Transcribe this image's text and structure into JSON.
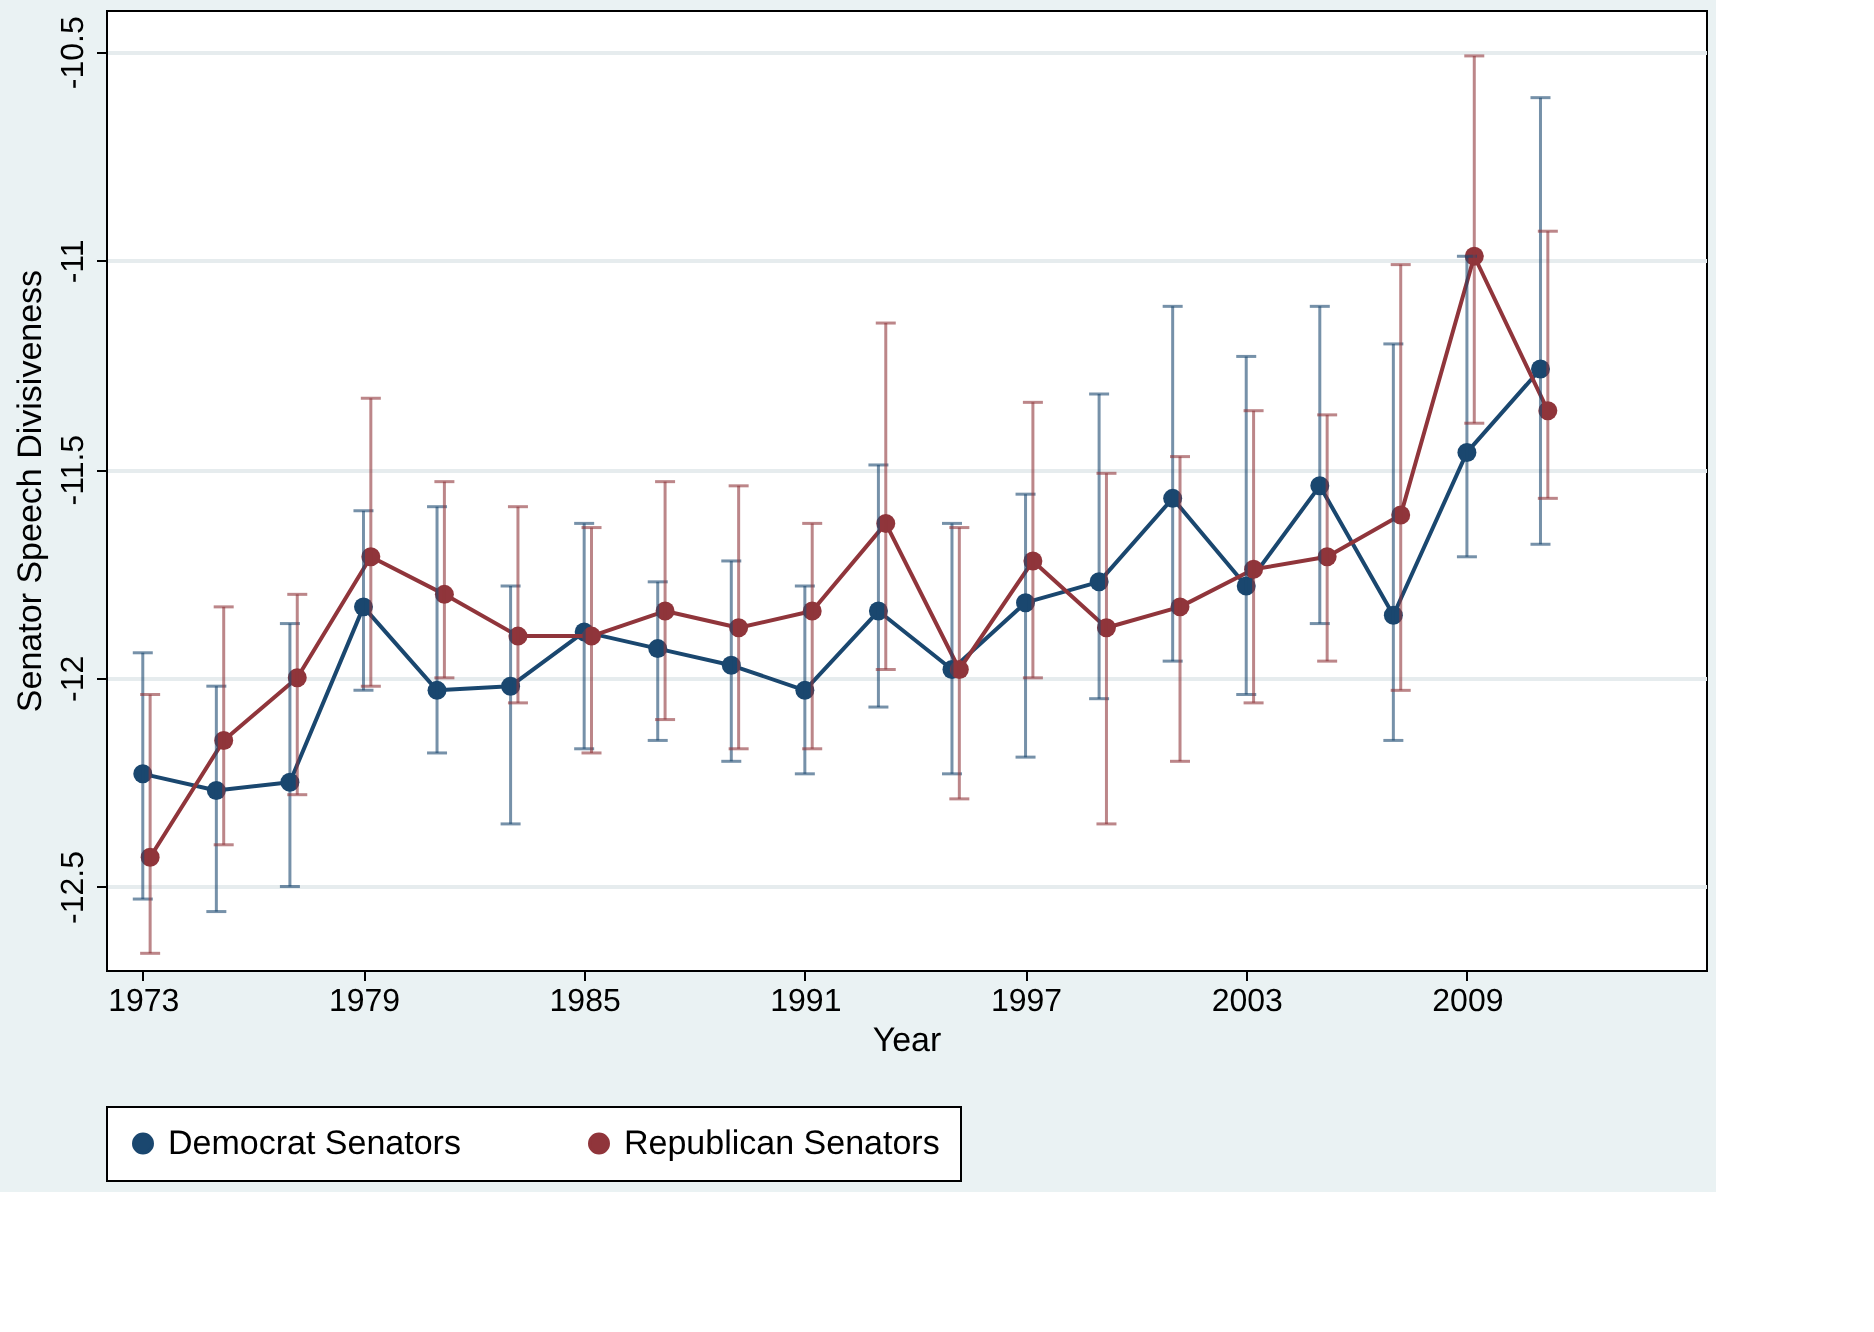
{
  "chart_data": {
    "type": "line",
    "xlabel": "Year",
    "ylabel": "Senator Speech Divisiveness",
    "x": [
      1973,
      1975,
      1977,
      1979,
      1981,
      1983,
      1985,
      1987,
      1989,
      1991,
      1993,
      1995,
      1997,
      1999,
      2001,
      2003,
      2005,
      2007,
      2009,
      2011
    ],
    "xlim": [
      1972,
      2015.5
    ],
    "xticks": [
      1973,
      1979,
      1985,
      1991,
      1997,
      2003,
      2009
    ],
    "ylim": [
      -12.7,
      -10.4
    ],
    "yticks": [
      -12.5,
      -12,
      -11.5,
      -11,
      -10.5
    ],
    "grid": "y",
    "legend": "bottom",
    "marker": "circle",
    "line_style": "solid",
    "series": [
      {
        "name": "Democrat Senators",
        "color": "#1a476f",
        "values": [
          -12.23,
          -12.27,
          -12.25,
          -11.83,
          -12.03,
          -12.02,
          -11.89,
          -11.93,
          -11.97,
          -12.03,
          -11.84,
          -11.98,
          -11.82,
          -11.77,
          -11.57,
          -11.78,
          -11.54,
          -11.85,
          -11.46,
          -11.26
        ],
        "errors": [
          [
            -12.53,
            -11.94
          ],
          [
            -12.56,
            -12.02
          ],
          [
            -12.5,
            -11.87
          ],
          [
            -12.03,
            -11.6
          ],
          [
            -12.18,
            -11.59
          ],
          [
            -12.35,
            -11.78
          ],
          [
            -12.17,
            -11.63
          ],
          [
            -12.15,
            -11.77
          ],
          [
            -12.2,
            -11.72
          ],
          [
            -12.23,
            -11.78
          ],
          [
            -12.07,
            -11.49
          ],
          [
            -12.23,
            -11.63
          ],
          [
            -12.19,
            -11.56
          ],
          [
            -12.05,
            -11.32
          ],
          [
            -11.96,
            -11.11
          ],
          [
            -12.04,
            -11.23
          ],
          [
            -11.87,
            -11.11
          ],
          [
            -12.15,
            -11.2
          ],
          [
            -11.71,
            -10.99
          ],
          [
            -11.68,
            -10.61
          ]
        ]
      },
      {
        "name": "Republican Senators",
        "color": "#90353b",
        "x": [
          1973.2,
          1975.2,
          1977.2,
          1979.2,
          1981.2,
          1983.2,
          1985.2,
          1987.2,
          1989.2,
          1991.2,
          1993.2,
          1995.2,
          1997.2,
          1999.2,
          2001.2,
          2003.2,
          2005.2,
          2007.2,
          2009.2,
          2011.2
        ],
        "values": [
          -12.43,
          -12.15,
          -12.0,
          -11.71,
          -11.8,
          -11.9,
          -11.9,
          -11.84,
          -11.88,
          -11.84,
          -11.63,
          -11.98,
          -11.72,
          -11.88,
          -11.83,
          -11.74,
          -11.71,
          -11.61,
          -10.99,
          -11.36
        ],
        "errors": [
          [
            -12.66,
            -12.04
          ],
          [
            -12.4,
            -11.83
          ],
          [
            -12.28,
            -11.8
          ],
          [
            -12.02,
            -11.33
          ],
          [
            -12.0,
            -11.53
          ],
          [
            -12.06,
            -11.59
          ],
          [
            -12.18,
            -11.64
          ],
          [
            -12.1,
            -11.53
          ],
          [
            -12.17,
            -11.54
          ],
          [
            -12.17,
            -11.63
          ],
          [
            -11.98,
            -11.15
          ],
          [
            -12.29,
            -11.64
          ],
          [
            -12.0,
            -11.34
          ],
          [
            -12.35,
            -11.51
          ],
          [
            -12.2,
            -11.47
          ],
          [
            -12.06,
            -11.36
          ],
          [
            -11.96,
            -11.37
          ],
          [
            -12.03,
            -11.01
          ],
          [
            -11.39,
            -10.51
          ],
          [
            -11.57,
            -10.93
          ]
        ]
      }
    ]
  }
}
